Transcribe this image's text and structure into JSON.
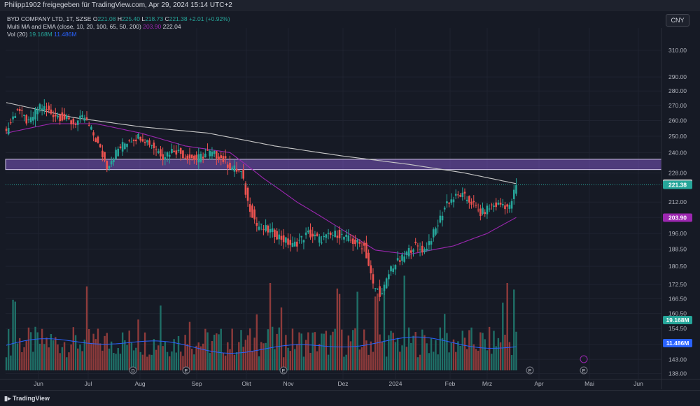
{
  "header": {
    "share_text": "Philipp1902 freigegeben für TradingView.com, Apr 29, 2024 15:14 UTC+2"
  },
  "legend": {
    "symbol": "BYD COMPANY LTD, 1T, SZSE",
    "o_label": "O",
    "o": "221.08",
    "h_label": "H",
    "h": "225.40",
    "l_label": "L",
    "l": "218.73",
    "c_label": "C",
    "c": "221.38",
    "change": "+2.01 (+0.92%)",
    "ma_name": "Multi MA and EMA (close, 10, 20, 100, 65, 50, 200)",
    "ma_v1": "203.90",
    "ma_v2": "222.04",
    "vol_name": "Vol (20)",
    "vol_v1": "19.168M",
    "vol_v2": "11.486M"
  },
  "currency": "CNY",
  "footer": {
    "brand": "TradingView"
  },
  "colors": {
    "up": "#26a69a",
    "down": "#ef5350",
    "ma_slow": "#c8c8c8",
    "ma_fast": "#9c27b0",
    "vol_ma": "#2962ff",
    "zone": "#7e57c2"
  },
  "chart_data": {
    "type": "candlestick",
    "y_scale": "log",
    "ylim": [
      136,
      325
    ],
    "y_ticks": [
      310.0,
      290.0,
      280.0,
      270.0,
      260.0,
      250.0,
      240.0,
      228.0,
      212.0,
      204.0,
      196.0,
      188.5,
      180.5,
      172.5,
      166.5,
      160.5,
      154.5,
      148.5,
      143.0,
      138.0
    ],
    "x_ticks": [
      "Jun",
      "Jul",
      "Aug",
      "Sep",
      "Okt",
      "Nov",
      "Dez",
      "2024",
      "Feb",
      "Mrz",
      "Apr",
      "Mai",
      "Jun"
    ],
    "price_labels": [
      {
        "text": "222.04",
        "value": 222.04,
        "color": "#d1d4dc",
        "bg": "#c8c8c8",
        "fg": "#161a25"
      },
      {
        "text": "221.38",
        "value": 221.38,
        "color": "#26a69a",
        "bg": "#26a69a",
        "fg": "#ffffff"
      },
      {
        "text": "203.90",
        "value": 203.9,
        "color": "#9c27b0",
        "bg": "#9c27b0",
        "fg": "#ffffff"
      }
    ],
    "volume_labels": [
      {
        "text": "19.168M",
        "bg": "#26a69a"
      },
      {
        "text": "11.486M",
        "bg": "#2962ff"
      }
    ],
    "zone": {
      "low": 230,
      "high": 236
    },
    "anchors": [
      [
        0,
        253
      ],
      [
        5,
        268
      ],
      [
        10,
        258
      ],
      [
        15,
        270
      ],
      [
        20,
        265
      ],
      [
        25,
        262
      ],
      [
        30,
        258
      ],
      [
        35,
        262
      ],
      [
        40,
        248
      ],
      [
        45,
        232
      ],
      [
        50,
        242
      ],
      [
        55,
        248
      ],
      [
        60,
        250
      ],
      [
        65,
        245
      ],
      [
        70,
        238
      ],
      [
        75,
        242
      ],
      [
        80,
        238
      ],
      [
        85,
        236
      ],
      [
        90,
        240
      ],
      [
        95,
        238
      ],
      [
        100,
        232
      ],
      [
        105,
        228
      ],
      [
        108,
        212
      ],
      [
        112,
        200
      ],
      [
        120,
        196
      ],
      [
        128,
        190
      ],
      [
        135,
        196
      ],
      [
        140,
        193
      ],
      [
        148,
        196
      ],
      [
        155,
        192
      ],
      [
        160,
        190
      ],
      [
        164,
        172
      ],
      [
        168,
        168
      ],
      [
        172,
        180
      ],
      [
        177,
        184
      ],
      [
        182,
        190
      ],
      [
        187,
        188
      ],
      [
        192,
        198
      ],
      [
        197,
        212
      ],
      [
        203,
        216
      ],
      [
        208,
        212
      ],
      [
        212,
        206
      ],
      [
        217,
        210
      ],
      [
        222,
        211
      ],
      [
        225,
        209
      ],
      [
        228,
        221
      ]
    ],
    "ma_slow": [
      [
        0,
        272
      ],
      [
        30,
        262
      ],
      [
        60,
        256
      ],
      [
        90,
        252
      ],
      [
        120,
        244
      ],
      [
        150,
        238
      ],
      [
        180,
        233
      ],
      [
        205,
        228
      ],
      [
        228,
        222
      ]
    ],
    "ma_fast": [
      [
        0,
        252
      ],
      [
        20,
        258
      ],
      [
        40,
        258
      ],
      [
        60,
        252
      ],
      [
        80,
        244
      ],
      [
        100,
        240
      ],
      [
        115,
        225
      ],
      [
        130,
        212
      ],
      [
        150,
        198
      ],
      [
        165,
        188
      ],
      [
        180,
        186
      ],
      [
        200,
        190
      ],
      [
        215,
        196
      ],
      [
        228,
        204
      ]
    ],
    "volume_ma_level": 11.5,
    "volume_max": 40
  }
}
